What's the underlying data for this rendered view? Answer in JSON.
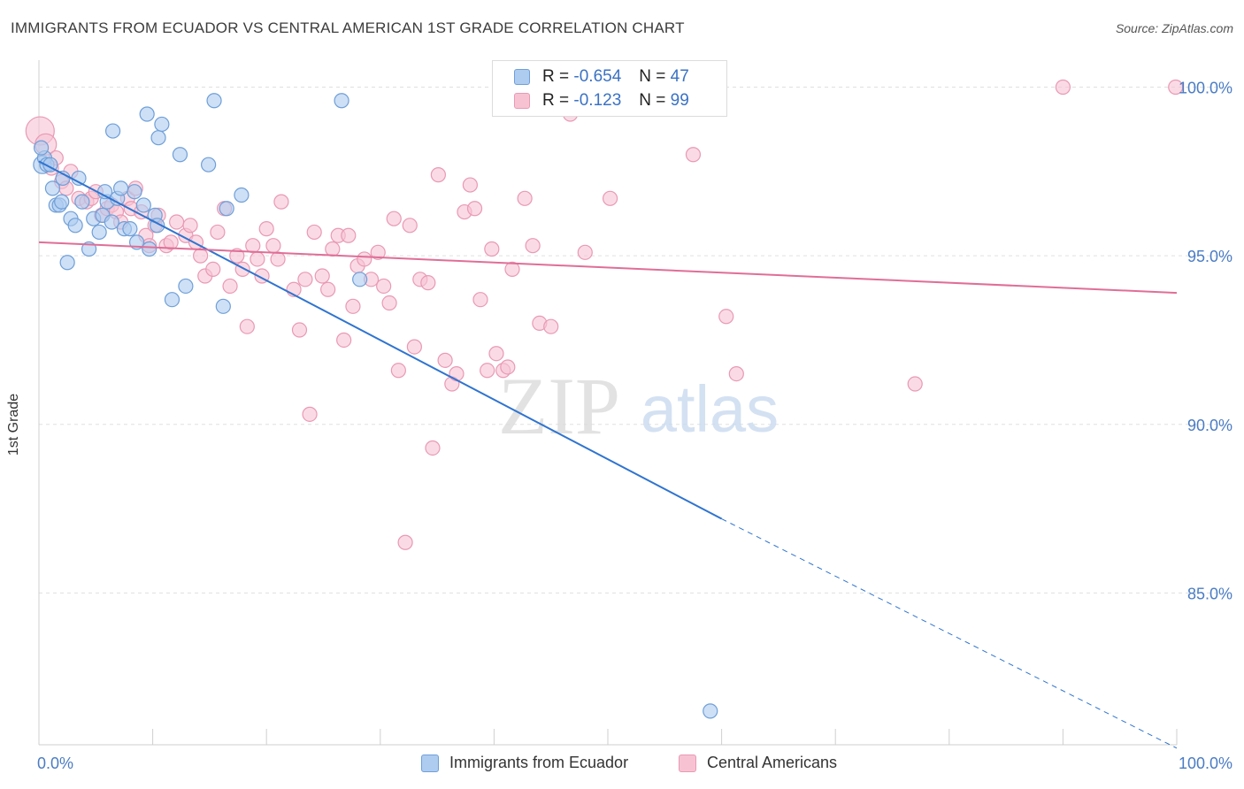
{
  "title": "IMMIGRANTS FROM ECUADOR VS CENTRAL AMERICAN 1ST GRADE CORRELATION CHART",
  "source": "Source: ZipAtlas.com",
  "watermark": {
    "zip": "ZIP",
    "atlas": "atlas"
  },
  "colors": {
    "blue_fill": "#aecbf0",
    "blue_stroke": "#6f9fd8",
    "blue_line": "#2f74d0",
    "pink_fill": "#f7c3d3",
    "pink_stroke": "#e999b4",
    "pink_line": "#e06e97",
    "axis_label": "#4a7cc4",
    "grid": "#e0e0e0"
  },
  "legend": {
    "rows": [
      {
        "r_label": "R =",
        "r_value": "-0.654",
        "n_label": "N =",
        "n_value": "47"
      },
      {
        "r_label": "R =",
        "r_value": "-0.123",
        "n_label": "N =",
        "n_value": "99"
      }
    ]
  },
  "bottom_legend": [
    "Immigrants from Ecuador",
    "Central Americans"
  ],
  "chart_data": {
    "type": "scatter",
    "xlabel": "",
    "ylabel": "1st Grade",
    "xlim": [
      0,
      100
    ],
    "ylim": [
      80.5,
      100.8
    ],
    "x_tick_labels": [
      "0.0%",
      "100.0%"
    ],
    "y_ticks": [
      85,
      90,
      95,
      100
    ],
    "y_tick_labels": [
      "85.0%",
      "90.0%",
      "95.0%",
      "100.0%"
    ],
    "grid": true,
    "series": [
      {
        "name": "Immigrants from Ecuador",
        "color": "#aecbf0",
        "points": [
          [
            0.3,
            97.7
          ],
          [
            0.5,
            97.9
          ],
          [
            0.7,
            97.7
          ],
          [
            1.0,
            97.7
          ],
          [
            1.2,
            97.0
          ],
          [
            1.5,
            96.5
          ],
          [
            1.8,
            96.5
          ],
          [
            2.1,
            97.3
          ],
          [
            2.5,
            94.8
          ],
          [
            2.8,
            96.1
          ],
          [
            3.2,
            95.9
          ],
          [
            3.5,
            97.3
          ],
          [
            3.8,
            96.6
          ],
          [
            4.4,
            95.2
          ],
          [
            4.8,
            96.1
          ],
          [
            5.3,
            95.7
          ],
          [
            5.6,
            96.2
          ],
          [
            6.0,
            96.6
          ],
          [
            6.4,
            96.0
          ],
          [
            6.5,
            98.7
          ],
          [
            6.9,
            96.7
          ],
          [
            7.2,
            97.0
          ],
          [
            7.5,
            95.8
          ],
          [
            8.0,
            95.8
          ],
          [
            8.4,
            96.9
          ],
          [
            8.6,
            95.4
          ],
          [
            9.2,
            96.5
          ],
          [
            9.5,
            99.2
          ],
          [
            9.7,
            95.2
          ],
          [
            10.2,
            96.2
          ],
          [
            10.4,
            95.9
          ],
          [
            10.5,
            98.5
          ],
          [
            10.8,
            98.9
          ],
          [
            11.7,
            93.7
          ],
          [
            12.4,
            98.0
          ],
          [
            12.9,
            94.1
          ],
          [
            14.9,
            97.7
          ],
          [
            15.4,
            99.6
          ],
          [
            16.2,
            93.5
          ],
          [
            16.5,
            96.4
          ],
          [
            17.8,
            96.8
          ],
          [
            26.6,
            99.6
          ],
          [
            28.2,
            94.3
          ],
          [
            59.0,
            81.5
          ],
          [
            0.2,
            98.2
          ],
          [
            2.0,
            96.6
          ],
          [
            5.8,
            96.9
          ]
        ]
      },
      {
        "name": "Central Americans",
        "color": "#f7c3d3",
        "points": [
          [
            0.1,
            98.7
          ],
          [
            0.6,
            98.3
          ],
          [
            1.1,
            97.6
          ],
          [
            1.5,
            97.9
          ],
          [
            2.0,
            97.2
          ],
          [
            2.4,
            97.0
          ],
          [
            2.8,
            97.5
          ],
          [
            3.5,
            96.7
          ],
          [
            4.2,
            96.6
          ],
          [
            4.6,
            96.7
          ],
          [
            5.0,
            96.9
          ],
          [
            5.5,
            96.2
          ],
          [
            6.0,
            96.4
          ],
          [
            6.4,
            96.5
          ],
          [
            6.8,
            96.3
          ],
          [
            7.2,
            96.0
          ],
          [
            7.8,
            96.7
          ],
          [
            8.1,
            96.4
          ],
          [
            8.5,
            97.0
          ],
          [
            9.0,
            96.3
          ],
          [
            9.4,
            95.6
          ],
          [
            9.7,
            95.3
          ],
          [
            10.2,
            95.9
          ],
          [
            10.5,
            96.2
          ],
          [
            11.2,
            95.3
          ],
          [
            11.6,
            95.4
          ],
          [
            12.1,
            96.0
          ],
          [
            12.9,
            95.6
          ],
          [
            13.3,
            95.9
          ],
          [
            13.8,
            95.4
          ],
          [
            14.2,
            95.0
          ],
          [
            14.6,
            94.4
          ],
          [
            15.3,
            94.6
          ],
          [
            15.7,
            95.7
          ],
          [
            16.3,
            96.4
          ],
          [
            16.8,
            94.1
          ],
          [
            17.4,
            95.0
          ],
          [
            17.9,
            94.6
          ],
          [
            18.3,
            92.9
          ],
          [
            18.8,
            95.3
          ],
          [
            19.2,
            94.9
          ],
          [
            19.6,
            94.4
          ],
          [
            20.0,
            95.8
          ],
          [
            20.6,
            95.3
          ],
          [
            21.0,
            94.9
          ],
          [
            21.3,
            96.6
          ],
          [
            22.4,
            94.0
          ],
          [
            22.9,
            92.8
          ],
          [
            23.4,
            94.3
          ],
          [
            23.8,
            90.3
          ],
          [
            24.2,
            95.7
          ],
          [
            24.9,
            94.4
          ],
          [
            25.4,
            94.0
          ],
          [
            25.8,
            95.2
          ],
          [
            26.3,
            95.6
          ],
          [
            26.8,
            92.5
          ],
          [
            27.2,
            95.6
          ],
          [
            27.6,
            93.5
          ],
          [
            28.0,
            94.7
          ],
          [
            28.6,
            94.9
          ],
          [
            29.2,
            94.3
          ],
          [
            29.8,
            95.1
          ],
          [
            30.3,
            94.1
          ],
          [
            30.8,
            93.6
          ],
          [
            31.2,
            96.1
          ],
          [
            31.6,
            91.6
          ],
          [
            32.6,
            95.9
          ],
          [
            33.0,
            92.3
          ],
          [
            33.5,
            94.3
          ],
          [
            34.2,
            94.2
          ],
          [
            34.6,
            89.3
          ],
          [
            35.1,
            97.4
          ],
          [
            35.7,
            91.9
          ],
          [
            36.3,
            91.2
          ],
          [
            36.7,
            91.5
          ],
          [
            37.4,
            96.3
          ],
          [
            37.9,
            97.1
          ],
          [
            38.3,
            96.4
          ],
          [
            38.8,
            93.7
          ],
          [
            39.4,
            91.6
          ],
          [
            39.8,
            95.2
          ],
          [
            40.2,
            92.1
          ],
          [
            40.8,
            91.6
          ],
          [
            41.2,
            91.7
          ],
          [
            41.6,
            94.6
          ],
          [
            42.7,
            96.7
          ],
          [
            43.4,
            95.3
          ],
          [
            44.0,
            93.0
          ],
          [
            45.0,
            92.9
          ],
          [
            46.7,
            99.2
          ],
          [
            48.0,
            95.1
          ],
          [
            50.2,
            96.7
          ],
          [
            57.5,
            98.0
          ],
          [
            59.0,
            100.0
          ],
          [
            60.4,
            93.2
          ],
          [
            61.3,
            91.5
          ],
          [
            77.0,
            91.2
          ],
          [
            90.0,
            100.0
          ],
          [
            99.9,
            100.0
          ],
          [
            32.2,
            86.5
          ]
        ]
      }
    ],
    "trend_lines": [
      {
        "series": "Immigrants from Ecuador",
        "x": [
          0,
          60
        ],
        "y": [
          97.8,
          87.2
        ],
        "dashed_extension_to": [
          100,
          80.4
        ]
      },
      {
        "series": "Central Americans",
        "x": [
          0,
          100
        ],
        "y": [
          95.4,
          93.9
        ]
      }
    ]
  }
}
